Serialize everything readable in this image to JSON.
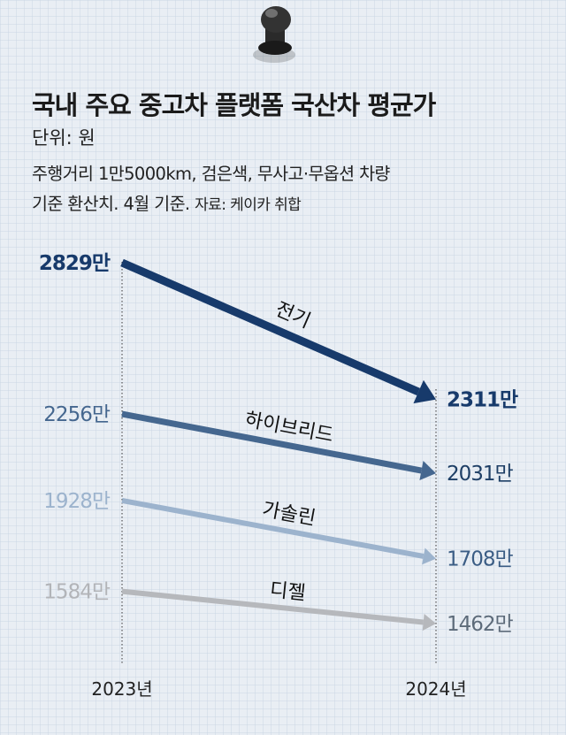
{
  "header": {
    "title": "국내 주요 중고차 플랫폼 국산차 평균가",
    "unit": "단위: 원",
    "note_line1": "주행거리 1만5000km, 검은색, 무사고·무옵션 차량",
    "note_line2": "기준 환산치. 4월 기준.",
    "source": "자료: 케이카 취합"
  },
  "chart_data": {
    "type": "line",
    "title": "국내 주요 중고차 플랫폼 국산차 평균가",
    "unit": "단위: 원",
    "x": [
      "2023년",
      "2024년"
    ],
    "series": [
      {
        "name": "전기",
        "values": [
          2829,
          2311
        ],
        "labels": [
          "2829만",
          "2311만"
        ],
        "color": "#173a6b"
      },
      {
        "name": "하이브리드",
        "values": [
          2256,
          2031
        ],
        "labels": [
          "2256만",
          "2031만"
        ],
        "color": "#45678f"
      },
      {
        "name": "가솔린",
        "values": [
          1928,
          1708
        ],
        "labels": [
          "1928만",
          "1708만"
        ],
        "color": "#9cb3cd"
      },
      {
        "name": "디젤",
        "values": [
          1584,
          1462
        ],
        "labels": [
          "1584만",
          "1462만"
        ],
        "color": "#b6b8bc"
      }
    ],
    "ylim": [
      1300,
      3000
    ],
    "grid": false,
    "legend": "inline"
  }
}
